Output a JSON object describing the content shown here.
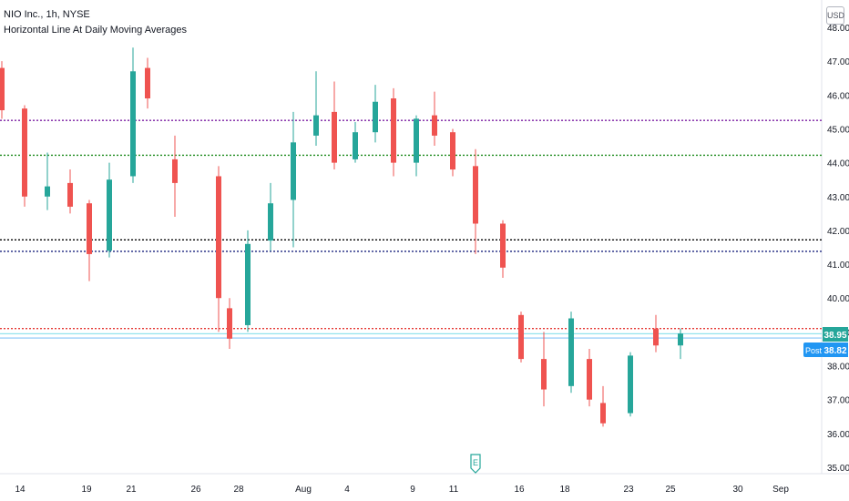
{
  "header": {
    "symbol_line": "NIO Inc., 1h, NYSE",
    "indicator_line": "Horizontal Line At Daily Moving Averages",
    "currency_badge": "USD"
  },
  "price_tags": [
    {
      "label": "",
      "value": "38.95",
      "color": "#26a69a"
    },
    {
      "label": "Post",
      "value": "38.82",
      "color": "#2196f3"
    }
  ],
  "earnings_marker": "E",
  "colors": {
    "up": "#26a69a",
    "down": "#ef5350",
    "axis_text": "#131722"
  },
  "chart_data": {
    "type": "candlestick",
    "title": "NIO Inc., 1h, NYSE",
    "subtitle": "Horizontal Line At Daily Moving Averages",
    "y_axis": {
      "ticks": [
        35.0,
        36.0,
        37.0,
        38.0,
        39.0,
        40.0,
        41.0,
        42.0,
        43.0,
        44.0,
        45.0,
        46.0,
        47.0,
        48.0
      ],
      "range": [
        34.9,
        48.2
      ]
    },
    "x_axis": {
      "labels": [
        "14",
        "19",
        "21",
        "26",
        "28",
        "Aug",
        "4",
        "9",
        "11",
        "16",
        "18",
        "23",
        "25",
        "30",
        "Sep"
      ]
    },
    "horizontal_lines": [
      {
        "value": 45.25,
        "color": "#7b1fa2"
      },
      {
        "value": 44.22,
        "color": "#1b8a1b"
      },
      {
        "value": 41.72,
        "color": "#000000"
      },
      {
        "value": 41.38,
        "color": "#1a237e"
      },
      {
        "value": 39.1,
        "color": "#e53935"
      },
      {
        "value": 38.95,
        "color": "#4dd0e1"
      },
      {
        "value": 38.82,
        "color": "#64b5f6"
      }
    ],
    "candles": [
      {
        "date": "13",
        "o": 46.8,
        "h": 47.0,
        "c": 45.55,
        "l": 45.3
      },
      {
        "date": "14",
        "o": 45.6,
        "h": 45.7,
        "c": 43.0,
        "l": 42.7
      },
      {
        "date": "15",
        "o": 43.0,
        "h": 44.3,
        "c": 43.3,
        "l": 42.6
      },
      {
        "date": "16",
        "o": 43.4,
        "h": 43.8,
        "c": 42.7,
        "l": 42.5
      },
      {
        "date": "19",
        "o": 42.8,
        "h": 42.9,
        "c": 41.3,
        "l": 40.5
      },
      {
        "date": "20",
        "o": 41.4,
        "h": 44.0,
        "c": 43.5,
        "l": 41.2
      },
      {
        "date": "21",
        "o": 43.6,
        "h": 47.4,
        "c": 46.7,
        "l": 43.4
      },
      {
        "date": "22",
        "o": 46.8,
        "h": 47.1,
        "c": 45.9,
        "l": 45.6
      },
      {
        "date": "23",
        "o": 44.1,
        "h": 44.8,
        "c": 43.4,
        "l": 42.4
      },
      {
        "date": "26",
        "o": 43.6,
        "h": 43.9,
        "c": 40.0,
        "l": 39.0
      },
      {
        "date": "27",
        "o": 39.7,
        "h": 40.0,
        "c": 38.8,
        "l": 38.5
      },
      {
        "date": "28",
        "o": 39.2,
        "h": 42.0,
        "c": 41.6,
        "l": 39.0
      },
      {
        "date": "29",
        "o": 41.7,
        "h": 43.4,
        "c": 42.8,
        "l": 41.4
      },
      {
        "date": "30",
        "o": 42.9,
        "h": 45.5,
        "c": 44.6,
        "l": 41.5
      },
      {
        "date": "Aug",
        "o": 44.8,
        "h": 46.7,
        "c": 45.4,
        "l": 44.5
      },
      {
        "date": "3",
        "o": 45.5,
        "h": 46.4,
        "c": 44.0,
        "l": 43.8
      },
      {
        "date": "4",
        "o": 44.1,
        "h": 45.2,
        "c": 44.9,
        "l": 44.0
      },
      {
        "date": "5",
        "o": 44.9,
        "h": 46.3,
        "c": 45.8,
        "l": 44.6
      },
      {
        "date": "6",
        "o": 45.9,
        "h": 46.2,
        "c": 44.0,
        "l": 43.6
      },
      {
        "date": "9",
        "o": 44.0,
        "h": 45.4,
        "c": 45.3,
        "l": 43.6
      },
      {
        "date": "10",
        "o": 45.4,
        "h": 46.1,
        "c": 44.8,
        "l": 44.5
      },
      {
        "date": "11",
        "o": 44.9,
        "h": 45.0,
        "c": 43.8,
        "l": 43.6
      },
      {
        "date": "12",
        "o": 43.9,
        "h": 44.4,
        "c": 42.2,
        "l": 41.3
      },
      {
        "date": "13",
        "o": 42.2,
        "h": 42.3,
        "c": 40.9,
        "l": 40.6
      },
      {
        "date": "16",
        "o": 39.5,
        "h": 39.6,
        "c": 38.2,
        "l": 38.1
      },
      {
        "date": "17",
        "o": 38.2,
        "h": 39.0,
        "c": 37.3,
        "l": 36.8
      },
      {
        "date": "18",
        "o": 37.4,
        "h": 39.6,
        "c": 39.4,
        "l": 37.2
      },
      {
        "date": "19",
        "o": 38.2,
        "h": 38.5,
        "c": 37.0,
        "l": 36.8
      },
      {
        "date": "20",
        "o": 36.9,
        "h": 37.4,
        "c": 36.3,
        "l": 36.2
      },
      {
        "date": "23",
        "o": 36.6,
        "h": 38.4,
        "c": 38.3,
        "l": 36.5
      },
      {
        "date": "24",
        "o": 39.1,
        "h": 39.5,
        "c": 38.6,
        "l": 38.4
      },
      {
        "date": "25",
        "o": 38.6,
        "h": 39.1,
        "c": 38.95,
        "l": 38.2
      }
    ]
  }
}
